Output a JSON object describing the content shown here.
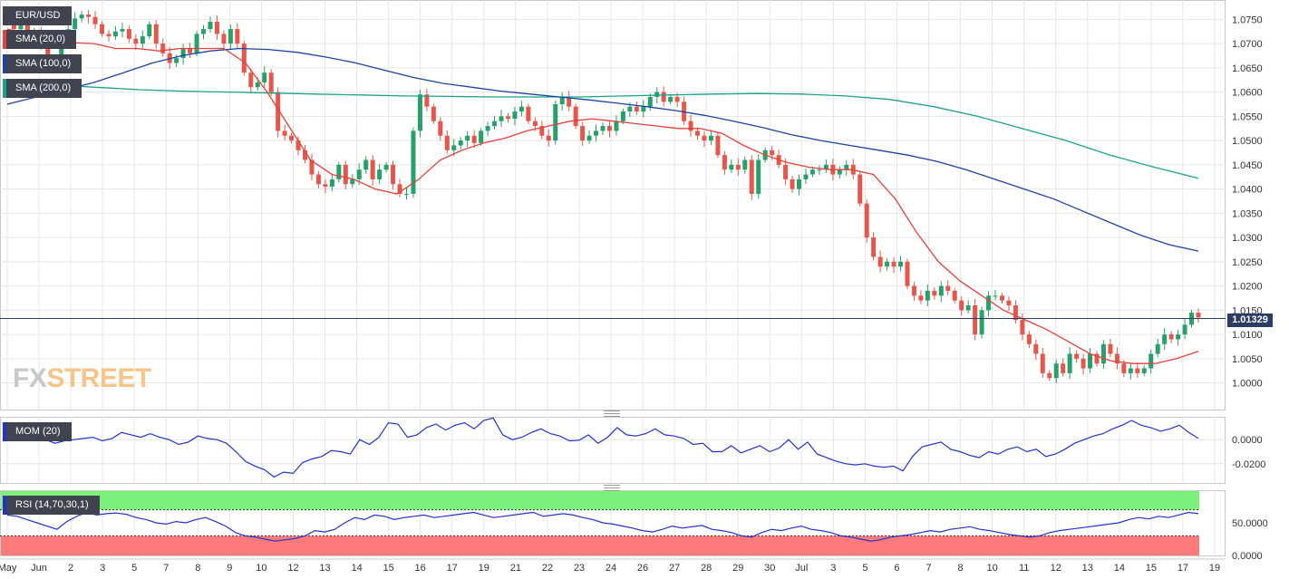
{
  "legends": {
    "pair": {
      "label": "EUR/USD",
      "color": "#3f4450"
    },
    "sma20": {
      "label": "SMA (20,0)",
      "color": "#e8413a"
    },
    "sma100": {
      "label": "SMA (100,0)",
      "color": "#1c43a8"
    },
    "sma200": {
      "label": "SMA (200,0)",
      "color": "#1aa38a"
    },
    "mom": {
      "label": "MOM (20)",
      "color": "#2233cc"
    },
    "rsi": {
      "label": "RSI (14,70,30,1)",
      "color": "#2233cc"
    }
  },
  "logo": {
    "part1": "FX",
    "part2": "STREET"
  },
  "colors": {
    "up": "#27a06b",
    "down": "#e5574b",
    "grid": "#e6e6e6",
    "axis": "#c8c8c8",
    "price_line": "#2c3d64",
    "rsi_overbought": "#7cf07a",
    "rsi_oversold": "#ff7a7a"
  },
  "chart_data": [
    {
      "type": "candlestick",
      "title": "EUR/USD",
      "current_price": "1.01329",
      "y_ticks": [
        "1.0750",
        "1.0700",
        "1.0650",
        "1.0600",
        "1.0550",
        "1.0500",
        "1.0450",
        "1.0400",
        "1.0350",
        "1.0300",
        "1.0250",
        "1.0200",
        "1.0150",
        "1.0100",
        "1.0050",
        "1.0000"
      ],
      "ylim": [
        0.9945,
        1.079
      ],
      "x_tick_labels": [
        "May",
        "Jun",
        "2",
        "3",
        "5",
        "7",
        "8",
        "9",
        "10",
        "12",
        "13",
        "14",
        "15",
        "16",
        "17",
        "19",
        "21",
        "22",
        "23",
        "24",
        "26",
        "27",
        "28",
        "29",
        "30",
        "Jul",
        "3",
        "5",
        "6",
        "7",
        "8",
        "10",
        "11",
        "12",
        "13",
        "14",
        "15",
        "17",
        "19"
      ],
      "path": [
        1.0745,
        1.073,
        1.0742,
        1.0715,
        1.0725,
        1.07,
        1.065,
        1.0655,
        1.07,
        1.073,
        1.0752,
        1.076,
        1.0755,
        1.074,
        1.072,
        1.0715,
        1.0725,
        1.073,
        1.071,
        1.07,
        1.0715,
        1.074,
        1.07,
        1.068,
        1.066,
        1.067,
        1.069,
        1.068,
        1.072,
        1.073,
        1.0745,
        1.072,
        1.07,
        1.073,
        1.07,
        1.064,
        1.061,
        1.062,
        1.064,
        1.06,
        1.052,
        1.051,
        1.05,
        1.048,
        1.046,
        1.043,
        1.041,
        1.0405,
        1.042,
        1.045,
        1.041,
        1.042,
        1.044,
        1.046,
        1.042,
        1.044,
        1.045,
        1.041,
        1.039,
        1.039,
        1.052,
        1.0595,
        1.057,
        1.054,
        1.051,
        1.048,
        1.049,
        1.05,
        1.051,
        1.0495,
        1.052,
        1.053,
        1.054,
        1.055,
        1.0545,
        1.056,
        1.057,
        1.054,
        1.053,
        1.051,
        1.05,
        1.0575,
        1.059,
        1.057,
        1.053,
        1.05,
        1.051,
        1.052,
        1.053,
        1.052,
        1.054,
        1.056,
        1.057,
        1.056,
        1.057,
        1.059,
        1.06,
        1.058,
        1.059,
        1.058,
        1.054,
        1.052,
        1.051,
        1.05,
        1.051,
        1.047,
        1.044,
        1.045,
        1.044,
        1.046,
        1.039,
        1.046,
        1.048,
        1.047,
        1.045,
        1.042,
        1.04,
        1.042,
        1.043,
        1.044,
        1.044,
        1.045,
        1.043,
        1.044,
        1.045,
        1.043,
        1.037,
        1.03,
        1.026,
        1.024,
        1.025,
        1.024,
        1.025,
        1.02,
        1.018,
        1.017,
        1.019,
        1.018,
        1.02,
        1.019,
        1.017,
        1.015,
        1.016,
        1.01,
        1.015,
        1.018,
        1.018,
        1.017,
        1.016,
        1.013,
        1.01,
        1.008,
        1.006,
        1.002,
        1.001,
        1.004,
        1.002,
        1.006,
        1.005,
        1.003,
        1.006,
        1.004,
        1.008,
        1.006,
        1.004,
        1.002,
        1.003,
        1.002,
        1.003,
        1.006,
        1.008,
        1.01,
        1.009,
        1.01,
        1.012,
        1.0145,
        1.0135
      ],
      "sma20_path": [
        1.073,
        1.072,
        1.0712,
        1.0702,
        1.07,
        1.069,
        1.069,
        1.0685,
        1.069,
        1.069,
        1.069,
        1.066,
        1.06,
        1.053,
        1.046,
        1.043,
        1.042,
        1.04,
        1.039,
        1.042,
        1.046,
        1.048,
        1.0495,
        1.0505,
        1.052,
        1.053,
        1.054,
        1.0545,
        1.054,
        1.0535,
        1.053,
        1.0525,
        1.0525,
        1.0515,
        1.049,
        1.047,
        1.0455,
        1.0445,
        1.044,
        1.044,
        1.043,
        1.038,
        1.031,
        1.025,
        1.021,
        1.018,
        1.015,
        1.013,
        1.011,
        1.0085,
        1.006,
        1.0045,
        1.004,
        1.004,
        1.005,
        1.0065
      ],
      "sma100_path": [
        1.0575,
        1.059,
        1.0605,
        1.062,
        1.064,
        1.066,
        1.0675,
        1.0685,
        1.069,
        1.0688,
        1.0682,
        1.0672,
        1.066,
        1.0645,
        1.063,
        1.0618,
        1.061,
        1.0602,
        1.0596,
        1.059,
        1.0584,
        1.0577,
        1.057,
        1.0562,
        1.0552,
        1.054,
        1.0527,
        1.0512,
        1.05,
        1.049,
        1.048,
        1.047,
        1.0457,
        1.044,
        1.042,
        1.04,
        1.038,
        1.0355,
        1.033,
        1.0305,
        1.0285,
        1.0272
      ],
      "sma200_path": [
        1.062,
        1.0615,
        1.061,
        1.0605,
        1.0602,
        1.06,
        1.0598,
        1.0596,
        1.0594,
        1.0592,
        1.0591,
        1.059,
        1.059,
        1.059,
        1.0592,
        1.0594,
        1.0596,
        1.0597,
        1.0596,
        1.0592,
        1.0585,
        1.057,
        1.055,
        1.0525,
        1.05,
        1.047,
        1.0445,
        1.0422
      ],
      "series": [
        {
          "name": "SMA (20,0)",
          "color": "#e8413a"
        },
        {
          "name": "SMA (100,0)",
          "color": "#1c43a8"
        },
        {
          "name": "SMA (200,0)",
          "color": "#1aa38a"
        }
      ]
    },
    {
      "type": "line",
      "title": "MOM (20)",
      "y_ticks": [
        "0.0000",
        "-0.0200"
      ],
      "ylim": [
        -0.036,
        0.019
      ],
      "values": [
        0.005,
        0.003,
        -0.001,
        0.002,
        0.0,
        -0.003,
        -0.001,
        0.0,
        0.001,
        0.002,
        -0.001,
        0.001,
        0.006,
        0.004,
        0.002,
        0.005,
        0.002,
        0.0,
        -0.004,
        -0.002,
        0.003,
        0.001,
        0.0,
        -0.003,
        -0.01,
        -0.018,
        -0.022,
        -0.025,
        -0.031,
        -0.027,
        -0.028,
        -0.019,
        -0.016,
        -0.014,
        -0.009,
        -0.01,
        -0.012,
        0.0,
        -0.004,
        0.002,
        0.014,
        0.013,
        0.002,
        0.004,
        0.01,
        0.013,
        0.008,
        0.012,
        0.014,
        0.009,
        0.016,
        0.018,
        0.004,
        0.0,
        0.002,
        0.006,
        0.009,
        0.005,
        0.003,
        -0.001,
        -0.0005,
        0.004,
        -0.003,
        0.002,
        0.01,
        0.004,
        0.003,
        0.005,
        0.009,
        0.004,
        0.003,
        0.001,
        -0.004,
        -0.003,
        -0.01,
        -0.01,
        -0.005,
        -0.011,
        -0.008,
        -0.005,
        -0.01,
        -0.007,
        0.0,
        -0.008,
        -0.002,
        -0.012,
        -0.015,
        -0.018,
        -0.02,
        -0.021,
        -0.02,
        -0.022,
        -0.023,
        -0.022,
        -0.026,
        -0.014,
        -0.006,
        -0.004,
        -0.002,
        -0.008,
        -0.01,
        -0.013,
        -0.015,
        -0.01,
        -0.012,
        -0.008,
        -0.006,
        -0.01,
        -0.008,
        -0.014,
        -0.012,
        -0.008,
        -0.003,
        0.0,
        0.003,
        0.005,
        0.009,
        0.012,
        0.016,
        0.012,
        0.01,
        0.007,
        0.009,
        0.012,
        0.006,
        0.001
      ]
    },
    {
      "type": "line",
      "title": "RSI (14,70,30,1)",
      "y_ticks": [
        "50.0000",
        "0.0000"
      ],
      "ylim": [
        0,
        100
      ],
      "overbought": 70,
      "oversold": 30,
      "values": [
        62,
        60,
        55,
        50,
        45,
        40,
        52,
        60,
        66,
        62,
        64,
        65,
        63,
        58,
        55,
        50,
        48,
        52,
        50,
        55,
        58,
        52,
        45,
        35,
        30,
        28,
        25,
        22,
        24,
        26,
        30,
        38,
        36,
        40,
        50,
        58,
        55,
        62,
        60,
        55,
        58,
        60,
        62,
        58,
        60,
        62,
        64,
        66,
        62,
        58,
        60,
        62,
        64,
        66,
        60,
        62,
        64,
        62,
        58,
        55,
        50,
        48,
        45,
        42,
        38,
        36,
        40,
        45,
        42,
        44,
        46,
        40,
        38,
        35,
        30,
        28,
        35,
        40,
        38,
        42,
        45,
        40,
        38,
        35,
        30,
        28,
        25,
        22,
        24,
        28,
        30,
        32,
        35,
        38,
        36,
        40,
        42,
        44,
        40,
        38,
        35,
        32,
        30,
        28,
        30,
        35,
        38,
        40,
        42,
        44,
        46,
        48,
        50,
        55,
        58,
        56,
        60,
        58,
        62,
        66,
        64
      ]
    }
  ]
}
